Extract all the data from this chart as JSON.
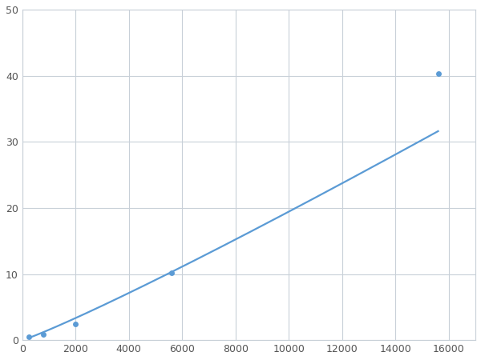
{
  "x": [
    250,
    800,
    2000,
    5600,
    15600
  ],
  "y": [
    0.5,
    0.9,
    2.5,
    10.2,
    40.3
  ],
  "line_color": "#5b9bd5",
  "marker_color": "#5b9bd5",
  "marker_style": "o",
  "marker_size": 5,
  "line_width": 1.6,
  "xlim": [
    0,
    17000
  ],
  "ylim": [
    0,
    50
  ],
  "xticks": [
    0,
    2000,
    4000,
    6000,
    8000,
    10000,
    12000,
    14000,
    16000
  ],
  "yticks": [
    0,
    10,
    20,
    30,
    40,
    50
  ],
  "grid_color": "#c8d0d8",
  "background_color": "#ffffff",
  "spine_color": "#c8d0d8"
}
